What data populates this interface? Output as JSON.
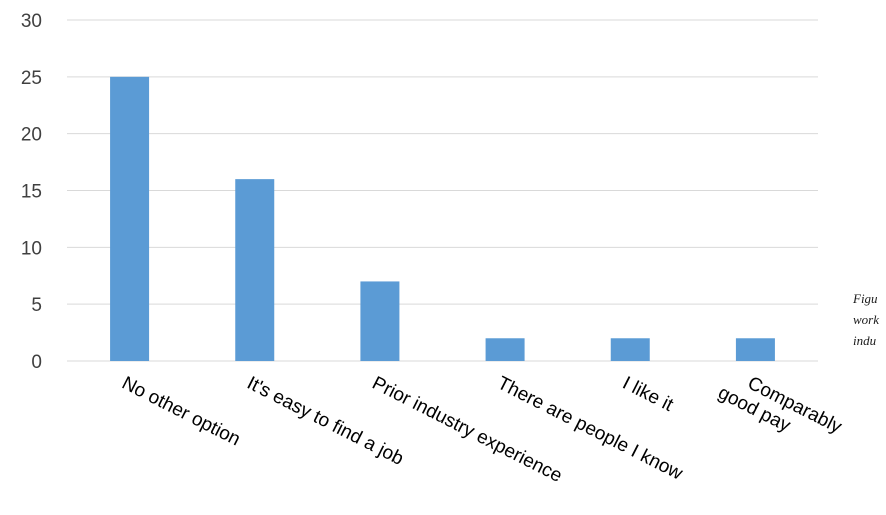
{
  "chart_data": {
    "type": "bar",
    "title": "",
    "xlabel": "",
    "ylabel": "",
    "ylim": [
      0,
      30
    ],
    "yticks": [
      0,
      5,
      10,
      15,
      20,
      25,
      30
    ],
    "grid": true,
    "categories": [
      [
        "No other option"
      ],
      [
        "It's easy to find a job"
      ],
      [
        "Prior industry experience"
      ],
      [
        "There are people I know"
      ],
      [
        "I like it"
      ],
      [
        "Comparably",
        "good pay"
      ]
    ],
    "values": [
      25,
      16,
      7,
      2,
      2,
      2
    ],
    "bar_color": "#5b9bd5"
  },
  "caption": {
    "lines": [
      "Figu",
      "work",
      "indu"
    ]
  }
}
